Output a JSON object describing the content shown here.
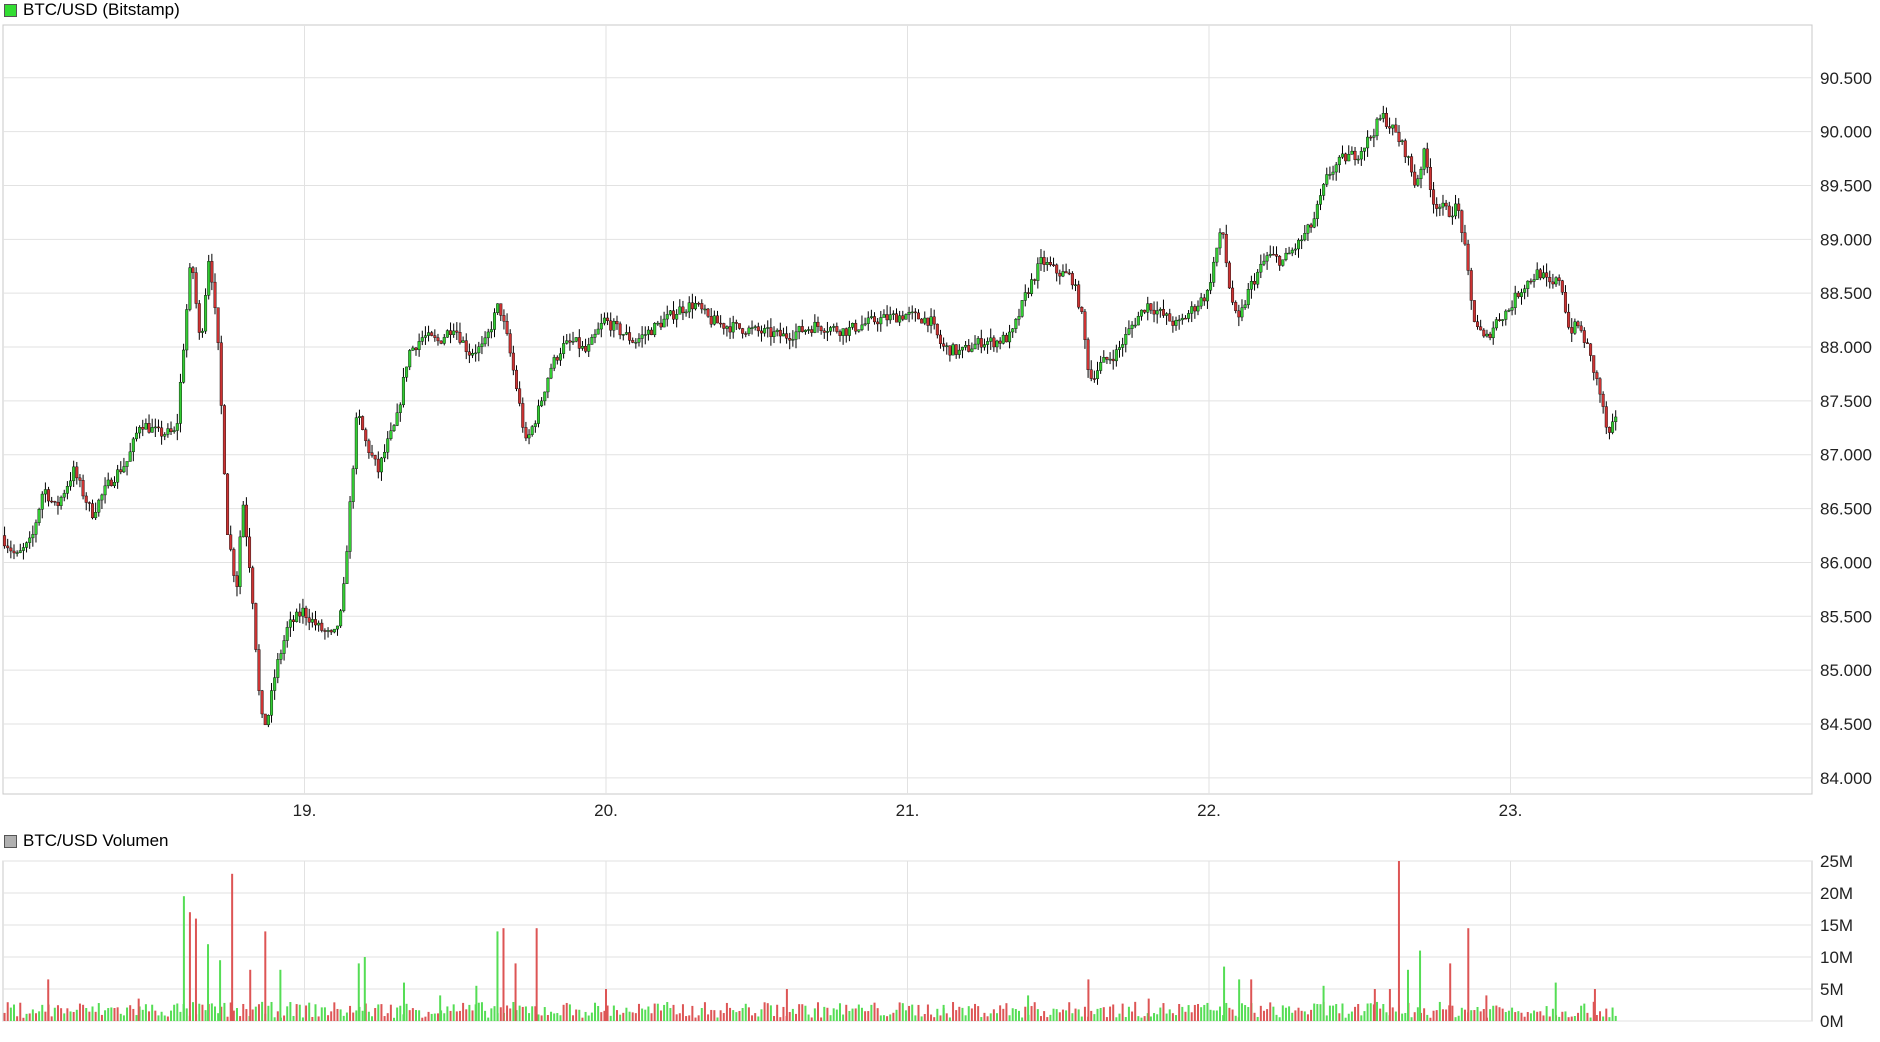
{
  "legend": {
    "price_label": "BTC/USD (Bitstamp)",
    "price_color": "#33dd33",
    "volume_label": "BTC/USD Volumen",
    "volume_color": "#b0b0b0"
  },
  "colors": {
    "up": "#33cc33",
    "down": "#cc3333",
    "wick": "#000000",
    "grid": "#e2e2e2",
    "frame": "#c8c8c8",
    "volume_up": "#55dd55",
    "volume_down": "#dd5555"
  },
  "chart_data": [
    {
      "type": "candlestick",
      "title": "BTC/USD (Bitstamp)",
      "x_range": [
        18.0,
        24.0
      ],
      "x_ticks": [
        {
          "value": 19,
          "label": "19."
        },
        {
          "value": 20,
          "label": "20."
        },
        {
          "value": 21,
          "label": "21."
        },
        {
          "value": 22,
          "label": "22."
        },
        {
          "value": 23,
          "label": "23."
        }
      ],
      "ylim": [
        83850,
        90990
      ],
      "y_ticks": [
        {
          "value": 84000,
          "label": "84.000"
        },
        {
          "value": 84500,
          "label": "84.500"
        },
        {
          "value": 85000,
          "label": "85.000"
        },
        {
          "value": 85500,
          "label": "85.500"
        },
        {
          "value": 86000,
          "label": "86.000"
        },
        {
          "value": 86500,
          "label": "86.500"
        },
        {
          "value": 87000,
          "label": "87.000"
        },
        {
          "value": 87500,
          "label": "87.500"
        },
        {
          "value": 88000,
          "label": "88.000"
        },
        {
          "value": 88500,
          "label": "88.500"
        },
        {
          "value": 89000,
          "label": "89.000"
        },
        {
          "value": 89500,
          "label": "89.500"
        },
        {
          "value": 90000,
          "label": "90.000"
        },
        {
          "value": 90500,
          "label": "90.500"
        }
      ],
      "grid": true,
      "close_path": [
        [
          18.0,
          86250
        ],
        [
          18.05,
          86050
        ],
        [
          18.1,
          86200
        ],
        [
          18.14,
          86700
        ],
        [
          18.18,
          86500
        ],
        [
          18.24,
          86850
        ],
        [
          18.3,
          86450
        ],
        [
          18.36,
          86750
        ],
        [
          18.42,
          86950
        ],
        [
          18.46,
          87300
        ],
        [
          18.52,
          87200
        ],
        [
          18.58,
          87200
        ],
        [
          18.61,
          88200
        ],
        [
          18.63,
          88850
        ],
        [
          18.66,
          88000
        ],
        [
          18.69,
          88900
        ],
        [
          18.72,
          87950
        ],
        [
          18.75,
          86300
        ],
        [
          18.78,
          85750
        ],
        [
          18.8,
          86600
        ],
        [
          18.83,
          85800
        ],
        [
          18.86,
          84550
        ],
        [
          18.88,
          84500
        ],
        [
          18.91,
          85000
        ],
        [
          18.95,
          85400
        ],
        [
          19.0,
          85550
        ],
        [
          19.05,
          85400
        ],
        [
          19.1,
          85300
        ],
        [
          19.13,
          85550
        ],
        [
          19.15,
          86300
        ],
        [
          19.18,
          87400
        ],
        [
          19.21,
          87100
        ],
        [
          19.25,
          86850
        ],
        [
          19.28,
          87100
        ],
        [
          19.31,
          87300
        ],
        [
          19.35,
          87950
        ],
        [
          19.4,
          88100
        ],
        [
          19.45,
          88050
        ],
        [
          19.5,
          88200
        ],
        [
          19.55,
          87950
        ],
        [
          19.6,
          88000
        ],
        [
          19.65,
          88400
        ],
        [
          19.68,
          88050
        ],
        [
          19.71,
          87600
        ],
        [
          19.74,
          87100
        ],
        [
          19.78,
          87400
        ],
        [
          19.82,
          87800
        ],
        [
          19.86,
          88000
        ],
        [
          19.9,
          88050
        ],
        [
          19.94,
          87950
        ],
        [
          20.0,
          88250
        ],
        [
          20.05,
          88150
        ],
        [
          20.1,
          88050
        ],
        [
          20.15,
          88150
        ],
        [
          20.2,
          88250
        ],
        [
          20.25,
          88350
        ],
        [
          20.3,
          88400
        ],
        [
          20.35,
          88250
        ],
        [
          20.4,
          88200
        ],
        [
          20.5,
          88150
        ],
        [
          20.6,
          88100
        ],
        [
          20.7,
          88200
        ],
        [
          20.8,
          88150
        ],
        [
          20.9,
          88250
        ],
        [
          21.0,
          88300
        ],
        [
          21.08,
          88250
        ],
        [
          21.12,
          88000
        ],
        [
          21.18,
          87950
        ],
        [
          21.25,
          88050
        ],
        [
          21.3,
          88050
        ],
        [
          21.35,
          88100
        ],
        [
          21.4,
          88500
        ],
        [
          21.45,
          88800
        ],
        [
          21.5,
          88700
        ],
        [
          21.55,
          88650
        ],
        [
          21.58,
          88350
        ],
        [
          21.61,
          87700
        ],
        [
          21.65,
          87850
        ],
        [
          21.7,
          87950
        ],
        [
          21.75,
          88200
        ],
        [
          21.8,
          88400
        ],
        [
          21.85,
          88300
        ],
        [
          21.9,
          88200
        ],
        [
          21.95,
          88350
        ],
        [
          22.0,
          88500
        ],
        [
          22.03,
          88900
        ],
        [
          22.05,
          89100
        ],
        [
          22.07,
          88600
        ],
        [
          22.1,
          88200
        ],
        [
          22.14,
          88550
        ],
        [
          22.2,
          88850
        ],
        [
          22.25,
          88800
        ],
        [
          22.3,
          88950
        ],
        [
          22.35,
          89150
        ],
        [
          22.4,
          89600
        ],
        [
          22.45,
          89750
        ],
        [
          22.5,
          89800
        ],
        [
          22.54,
          89950
        ],
        [
          22.58,
          90150
        ],
        [
          22.62,
          90000
        ],
        [
          22.66,
          89800
        ],
        [
          22.69,
          89500
        ],
        [
          22.72,
          89800
        ],
        [
          22.75,
          89350
        ],
        [
          22.8,
          89250
        ],
        [
          22.83,
          89300
        ],
        [
          22.85,
          89000
        ],
        [
          22.88,
          88300
        ],
        [
          22.92,
          88050
        ],
        [
          22.96,
          88250
        ],
        [
          23.0,
          88350
        ],
        [
          23.03,
          88500
        ],
        [
          23.06,
          88600
        ],
        [
          23.1,
          88700
        ],
        [
          23.14,
          88550
        ],
        [
          23.17,
          88650
        ],
        [
          23.2,
          88150
        ],
        [
          23.23,
          88200
        ],
        [
          23.26,
          88000
        ],
        [
          23.3,
          87600
        ],
        [
          23.33,
          87150
        ],
        [
          23.35,
          87300
        ]
      ]
    },
    {
      "type": "bar",
      "title": "BTC/USD Volumen",
      "x_range": [
        18.0,
        24.0
      ],
      "ylim": [
        0,
        25
      ],
      "y_ticks": [
        {
          "value": 0,
          "label": "0M"
        },
        {
          "value": 5,
          "label": "5M"
        },
        {
          "value": 10,
          "label": "10M"
        },
        {
          "value": 15,
          "label": "15M"
        },
        {
          "value": 20,
          "label": "20M"
        },
        {
          "value": 25,
          "label": "25M"
        }
      ],
      "grid": true,
      "baseline_range": [
        0.5,
        3.0
      ],
      "spikes": [
        [
          18.15,
          6.5,
          "down"
        ],
        [
          18.45,
          3.5,
          "down"
        ],
        [
          18.6,
          19.5,
          "up"
        ],
        [
          18.62,
          17.0,
          "down"
        ],
        [
          18.64,
          16.0,
          "down"
        ],
        [
          18.68,
          12.0,
          "up"
        ],
        [
          18.72,
          9.5,
          "up"
        ],
        [
          18.76,
          23.0,
          "down"
        ],
        [
          18.82,
          8.0,
          "down"
        ],
        [
          18.87,
          14.0,
          "down"
        ],
        [
          18.92,
          8.0,
          "up"
        ],
        [
          19.18,
          9.0,
          "up"
        ],
        [
          19.2,
          10.0,
          "up"
        ],
        [
          19.33,
          6.0,
          "up"
        ],
        [
          19.45,
          4.0,
          "up"
        ],
        [
          19.57,
          5.5,
          "up"
        ],
        [
          19.64,
          14.0,
          "up"
        ],
        [
          19.66,
          14.5,
          "down"
        ],
        [
          19.7,
          9.0,
          "down"
        ],
        [
          19.77,
          14.5,
          "down"
        ],
        [
          20.0,
          5.0,
          "down"
        ],
        [
          20.6,
          5.0,
          "down"
        ],
        [
          21.12,
          2.0,
          "up"
        ],
        [
          21.4,
          4.0,
          "up"
        ],
        [
          21.6,
          6.5,
          "down"
        ],
        [
          21.8,
          3.5,
          "down"
        ],
        [
          22.05,
          8.5,
          "up"
        ],
        [
          22.1,
          6.5,
          "up"
        ],
        [
          22.14,
          6.5,
          "down"
        ],
        [
          22.38,
          5.5,
          "up"
        ],
        [
          22.55,
          5.0,
          "down"
        ],
        [
          22.6,
          5.0,
          "down"
        ],
        [
          22.63,
          25.0,
          "down"
        ],
        [
          22.66,
          8.0,
          "up"
        ],
        [
          22.7,
          11.0,
          "up"
        ],
        [
          22.8,
          9.0,
          "down"
        ],
        [
          22.86,
          14.5,
          "down"
        ],
        [
          22.92,
          4.0,
          "down"
        ],
        [
          23.15,
          6.0,
          "up"
        ],
        [
          23.28,
          5.0,
          "down"
        ]
      ]
    }
  ]
}
